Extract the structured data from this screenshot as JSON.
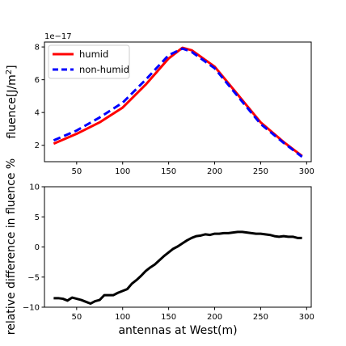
{
  "chart_data": [
    {
      "type": "line",
      "title": "",
      "xlabel": "",
      "ylabel": "fluence[J/m2]",
      "ylabel_main": "fluence[J/m",
      "ylabel_sup": "2",
      "ylabel_end": "]",
      "offset_text": "1e−17",
      "xlim": [
        15,
        305
      ],
      "ylim": [
        1.0,
        8.3
      ],
      "xticks": [
        50,
        100,
        150,
        200,
        250,
        300
      ],
      "xtick_labels": [
        "50",
        "100",
        "150",
        "200",
        "250",
        "300"
      ],
      "yticks": [
        2,
        4,
        6,
        8
      ],
      "ytick_labels": [
        "2",
        "4",
        "6",
        "8"
      ],
      "legend_position": "upper-left",
      "x": [
        25,
        50,
        75,
        100,
        125,
        150,
        165,
        175,
        200,
        225,
        250,
        275,
        295
      ],
      "series": [
        {
          "name": "humid",
          "color": "#ff0000",
          "style": "solid",
          "values": [
            2.1,
            2.7,
            3.4,
            4.3,
            5.7,
            7.3,
            7.95,
            7.8,
            6.8,
            5.1,
            3.4,
            2.2,
            1.35
          ]
        },
        {
          "name": "non-humid",
          "color": "#0000ff",
          "style": "dashed",
          "values": [
            2.3,
            2.9,
            3.7,
            4.6,
            6.0,
            7.5,
            7.9,
            7.7,
            6.7,
            5.0,
            3.3,
            2.15,
            1.3
          ]
        }
      ]
    },
    {
      "type": "line",
      "title": "",
      "xlabel": "antennas at West(m)",
      "ylabel": "relative difference in fluence %",
      "xlim": [
        15,
        305
      ],
      "ylim": [
        -10,
        10
      ],
      "xticks": [
        50,
        100,
        150,
        200,
        250,
        300
      ],
      "xtick_labels": [
        "50",
        "100",
        "150",
        "200",
        "250",
        "300"
      ],
      "yticks": [
        -10,
        -5,
        0,
        5,
        10
      ],
      "ytick_labels": [
        "−10",
        "−5",
        "0",
        "5",
        "10"
      ],
      "x": [
        25,
        30,
        35,
        40,
        45,
        50,
        55,
        60,
        65,
        70,
        75,
        80,
        85,
        90,
        95,
        100,
        105,
        110,
        115,
        120,
        125,
        130,
        135,
        140,
        145,
        150,
        155,
        160,
        165,
        170,
        175,
        180,
        185,
        190,
        195,
        200,
        205,
        210,
        215,
        220,
        225,
        230,
        235,
        240,
        245,
        250,
        255,
        260,
        265,
        270,
        275,
        280,
        285,
        290,
        295
      ],
      "series": [
        {
          "color": "#000000",
          "style": "solid",
          "values": [
            -8.5,
            -8.5,
            -8.6,
            -8.9,
            -8.4,
            -8.6,
            -8.8,
            -9.1,
            -9.4,
            -9.0,
            -8.8,
            -8.0,
            -8.0,
            -8.0,
            -7.6,
            -7.3,
            -7.0,
            -6.1,
            -5.5,
            -4.8,
            -4.0,
            -3.4,
            -2.9,
            -2.2,
            -1.5,
            -0.9,
            -0.3,
            0.1,
            0.6,
            1.1,
            1.5,
            1.8,
            1.9,
            2.1,
            2.0,
            2.2,
            2.2,
            2.3,
            2.3,
            2.4,
            2.5,
            2.5,
            2.4,
            2.3,
            2.2,
            2.2,
            2.1,
            2.0,
            1.8,
            1.7,
            1.8,
            1.7,
            1.7,
            1.5,
            1.5
          ]
        }
      ]
    }
  ]
}
